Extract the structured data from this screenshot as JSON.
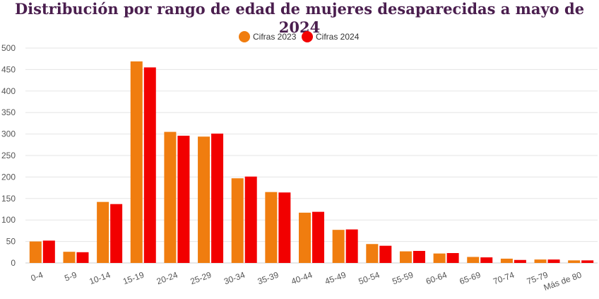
{
  "colors": {
    "title": "#4a1e4e",
    "series_2023": "#f07d0f",
    "series_2024": "#f20000",
    "grid": "#e5e5e5",
    "tick_text": "#555555"
  },
  "chart_data": {
    "type": "bar",
    "title": "Distribución por rango de edad de mujeres desaparecidas a mayo de 2024",
    "xlabel": "",
    "ylabel": "",
    "ylim": [
      0,
      500
    ],
    "yticks": [
      "0",
      "50",
      "100",
      "150",
      "200",
      "250",
      "300",
      "350",
      "400",
      "450",
      "500"
    ],
    "grid": true,
    "legend_position": "top-center",
    "categories": [
      "0-4",
      "5-9",
      "10-14",
      "15-19",
      "20-24",
      "25-29",
      "30-34",
      "35-39",
      "40-44",
      "45-49",
      "50-54",
      "55-59",
      "60-64",
      "65-69",
      "70-74",
      "75-79",
      "Más de 80"
    ],
    "series": [
      {
        "name": "Cifras 2023",
        "color": "#f07d0f",
        "values": [
          50,
          26,
          142,
          469,
          305,
          294,
          197,
          165,
          117,
          77,
          44,
          27,
          22,
          14,
          10,
          8,
          6
        ]
      },
      {
        "name": "Cifras 2024",
        "color": "#f20000",
        "values": [
          52,
          25,
          137,
          455,
          296,
          301,
          201,
          164,
          119,
          78,
          40,
          28,
          23,
          13,
          7,
          8,
          6
        ]
      }
    ]
  }
}
